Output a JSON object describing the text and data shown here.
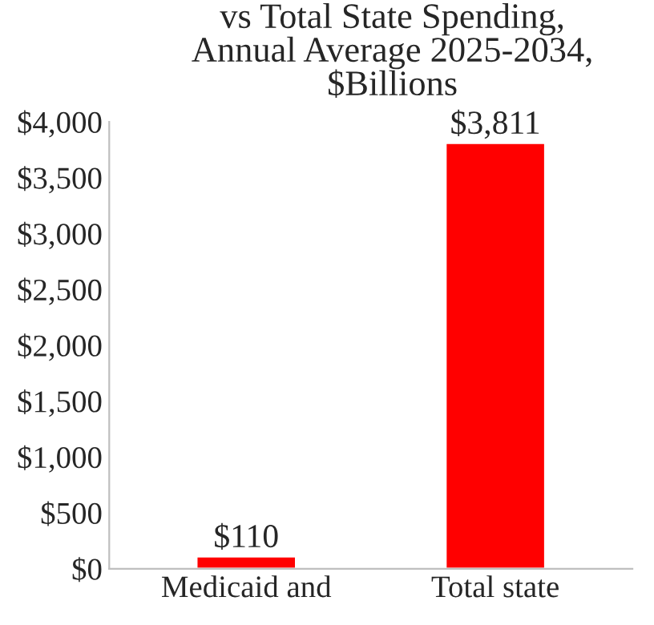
{
  "chart_data": {
    "type": "bar",
    "title": "vs Total State Spending,\nAnnual Average 2025-2034,\n$Billions",
    "categories": [
      "Medicaid and",
      "Total state"
    ],
    "values": [
      110,
      3811
    ],
    "color": "#ff0000",
    "value_labels": [
      "$110",
      "$3,811"
    ],
    "ylim": [
      0,
      4000
    ],
    "yticks": [
      {
        "value": 0,
        "label": "$0"
      },
      {
        "value": 500,
        "label": "$500"
      },
      {
        "value": 1000,
        "label": "$1,000"
      },
      {
        "value": 1500,
        "label": "$1,500"
      },
      {
        "value": 2000,
        "label": "$2,000"
      },
      {
        "value": 2500,
        "label": "$2,500"
      },
      {
        "value": 3000,
        "label": "$3,000"
      },
      {
        "value": 3500,
        "label": "$3,500"
      },
      {
        "value": 4000,
        "label": "$4,000"
      }
    ],
    "grid": false,
    "legend": false
  }
}
